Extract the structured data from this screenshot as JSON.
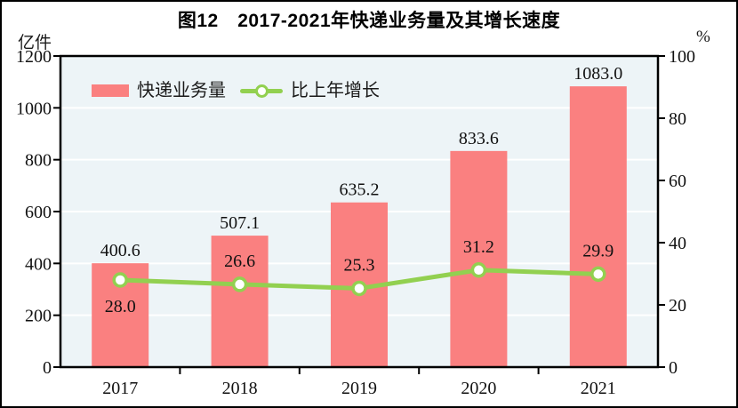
{
  "figure": {
    "title": "图12　2017-2021年快递业务量及其增长速度"
  },
  "legend": [
    {
      "label": "快递业务量",
      "marker": "bar-swatch",
      "color": "#FA8080"
    },
    {
      "label": "比上年增长",
      "marker": "line-with-dot-swatch",
      "color": "#92D050"
    }
  ],
  "chart_data": {
    "type": "bar+line",
    "title": "图12　2017-2021年快递业务量及其增长速度",
    "categories": [
      "2017",
      "2018",
      "2019",
      "2020",
      "2021"
    ],
    "series": [
      {
        "name": "快递业务量",
        "type": "bar",
        "axis": "left",
        "unit": "亿件",
        "color": "#FA8080",
        "values": [
          400.6,
          507.1,
          635.2,
          833.6,
          1083.0
        ]
      },
      {
        "name": "比上年增长",
        "type": "line",
        "axis": "right",
        "unit": "%",
        "color": "#92D050",
        "values": [
          28.0,
          26.6,
          25.3,
          31.2,
          29.9
        ],
        "value_label_positions": [
          "below",
          "above",
          "above",
          "above",
          "above"
        ]
      }
    ],
    "left_axis": {
      "label": "亿件",
      "min": 0,
      "max": 1200,
      "tick_step": 200,
      "ticks": [
        0,
        200,
        400,
        600,
        800,
        1000,
        1200
      ]
    },
    "right_axis": {
      "label": "%",
      "min": 0,
      "max": 100,
      "tick_step": 20,
      "ticks": [
        0,
        20,
        40,
        60,
        80,
        100
      ]
    },
    "grid": true,
    "grid_color": "#FFFFFF",
    "plot_bg": "#EDF4F7",
    "legend_position": "top-left-inside"
  }
}
